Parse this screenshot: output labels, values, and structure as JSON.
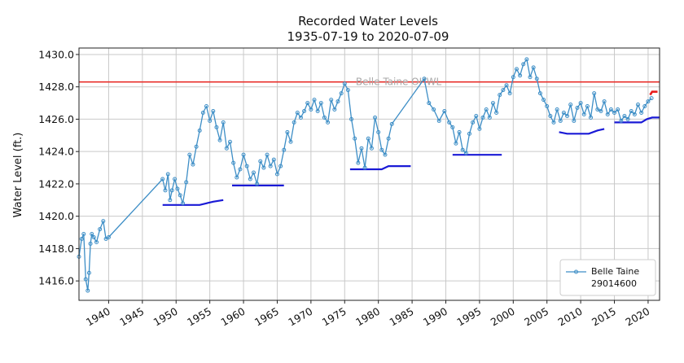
{
  "chart_data": {
    "type": "line",
    "title": "Recorded Water Levels",
    "subtitle": "1935-07-19 to 2020-07-09",
    "xlabel": "",
    "ylabel": "Water Level (ft.)",
    "xlim": [
      1935.6,
      2021.7
    ],
    "ylim": [
      1414.8,
      1430.4
    ],
    "x_ticks": [
      1940,
      1945,
      1950,
      1955,
      1960,
      1965,
      1970,
      1975,
      1980,
      1985,
      1990,
      1995,
      2000,
      2005,
      2010,
      2015,
      2020
    ],
    "y_ticks": [
      "1416.0",
      "1418.0",
      "1420.0",
      "1422.0",
      "1424.0",
      "1426.0",
      "1428.0",
      "1430.0"
    ],
    "grid": true,
    "legend_position": "bottom-right",
    "colors": {
      "series": "#3d8ec6",
      "ohwl": "#e8302c",
      "runout": "#1a1ad6",
      "recent": "#e81c1c"
    },
    "series": [
      {
        "name": "Belle Taine\n29014600",
        "x": [
          1935.6,
          1936.0,
          1936.3,
          1936.6,
          1936.9,
          1937.1,
          1937.3,
          1937.5,
          1937.8,
          1938.2,
          1938.7,
          1939.2,
          1939.6,
          1940.0,
          1948.0,
          1948.4,
          1948.8,
          1949.1,
          1949.4,
          1949.8,
          1950.2,
          1950.6,
          1951.0,
          1951.5,
          1952.0,
          1952.5,
          1953.0,
          1953.5,
          1954.0,
          1954.5,
          1955.0,
          1955.5,
          1956.0,
          1956.5,
          1957.0,
          1957.5,
          1958.0,
          1958.5,
          1959.0,
          1959.5,
          1960.0,
          1960.5,
          1961.0,
          1961.5,
          1962.0,
          1962.5,
          1963.0,
          1963.5,
          1964.0,
          1964.5,
          1965.0,
          1965.5,
          1966.0,
          1966.5,
          1967.0,
          1967.5,
          1968.0,
          1968.5,
          1969.0,
          1969.5,
          1970.0,
          1970.5,
          1971.0,
          1971.5,
          1972.0,
          1972.5,
          1973.0,
          1973.5,
          1974.0,
          1974.5,
          1975.0,
          1975.5,
          1976.0,
          1976.5,
          1977.0,
          1977.5,
          1978.0,
          1978.5,
          1979.0,
          1979.5,
          1980.0,
          1980.5,
          1981.0,
          1981.5,
          1982.0,
          1986.8,
          1987.5,
          1988.2,
          1989.0,
          1989.8,
          1990.5,
          1991.0,
          1991.5,
          1992.0,
          1992.5,
          1993.0,
          1993.5,
          1994.0,
          1994.5,
          1995.0,
          1995.5,
          1996.0,
          1996.5,
          1997.0,
          1997.5,
          1998.0,
          1998.5,
          1999.0,
          1999.5,
          2000.0,
          2000.5,
          2001.0,
          2001.5,
          2002.0,
          2002.5,
          2003.0,
          2003.5,
          2004.0,
          2004.5,
          2005.0,
          2005.5,
          2006.0,
          2006.5,
          2007.0,
          2007.5,
          2008.0,
          2008.5,
          2009.0,
          2009.5,
          2010.0,
          2010.5,
          2011.0,
          2011.5,
          2012.0,
          2012.5,
          2013.0,
          2013.5,
          2014.0,
          2014.5,
          2015.0,
          2015.5,
          2016.0,
          2016.5,
          2017.0,
          2017.5,
          2018.0,
          2018.5,
          2019.0,
          2019.5,
          2020.0,
          2020.5
        ],
        "values": [
          1417.5,
          1418.6,
          1418.9,
          1416.1,
          1415.4,
          1416.5,
          1418.3,
          1418.9,
          1418.7,
          1418.4,
          1419.2,
          1419.7,
          1418.6,
          1418.7,
          1422.3,
          1421.6,
          1422.6,
          1421.0,
          1421.6,
          1422.3,
          1421.7,
          1421.3,
          1420.8,
          1422.1,
          1423.8,
          1423.2,
          1424.3,
          1425.3,
          1426.4,
          1426.8,
          1425.9,
          1426.5,
          1425.5,
          1424.7,
          1425.8,
          1424.2,
          1424.6,
          1423.3,
          1422.4,
          1422.9,
          1423.8,
          1423.1,
          1422.3,
          1422.7,
          1422.0,
          1423.4,
          1423.0,
          1423.8,
          1423.1,
          1423.5,
          1422.6,
          1423.1,
          1424.1,
          1425.2,
          1424.6,
          1425.8,
          1426.4,
          1426.1,
          1426.5,
          1427.0,
          1426.6,
          1427.2,
          1426.5,
          1427.0,
          1426.1,
          1425.8,
          1427.2,
          1426.6,
          1427.1,
          1427.6,
          1428.2,
          1427.8,
          1426.0,
          1424.8,
          1423.3,
          1424.2,
          1423.0,
          1424.8,
          1424.2,
          1426.1,
          1425.2,
          1424.1,
          1423.8,
          1424.8,
          1425.7,
          1428.5,
          1427.0,
          1426.6,
          1425.9,
          1426.5,
          1425.8,
          1425.5,
          1424.5,
          1425.2,
          1424.1,
          1423.9,
          1425.1,
          1425.8,
          1426.2,
          1425.4,
          1426.1,
          1426.6,
          1426.1,
          1427.0,
          1426.4,
          1427.5,
          1427.8,
          1428.1,
          1427.6,
          1428.6,
          1429.1,
          1428.7,
          1429.4,
          1429.7,
          1428.6,
          1429.2,
          1428.5,
          1427.6,
          1427.2,
          1426.8,
          1426.2,
          1425.8,
          1426.6,
          1425.9,
          1426.4,
          1426.2,
          1426.9,
          1425.9,
          1426.7,
          1427.0,
          1426.3,
          1426.8,
          1426.1,
          1427.6,
          1426.6,
          1426.5,
          1427.1,
          1426.3,
          1426.6,
          1426.4,
          1426.6,
          1425.9,
          1426.2,
          1426.0,
          1426.5,
          1426.3,
          1426.9,
          1426.4,
          1426.8,
          1427.1,
          1427.3
        ]
      }
    ],
    "reference_line": {
      "label": "Belle Taine OHWL",
      "y": 1428.3
    },
    "runout_segments": [
      {
        "x": [
          1948.0,
          1953.5,
          1954.5,
          1955.5,
          1957.0
        ],
        "y": [
          1420.7,
          1420.7,
          1420.8,
          1420.9,
          1421.0
        ]
      },
      {
        "x": [
          1958.3,
          1966.0
        ],
        "y": [
          1421.9,
          1421.9
        ]
      },
      {
        "x": [
          1975.8,
          1980.5,
          1981.5,
          1983.0,
          1984.8
        ],
        "y": [
          1422.9,
          1422.9,
          1423.1,
          1423.1,
          1423.1
        ]
      },
      {
        "x": [
          1991.0,
          1998.3
        ],
        "y": [
          1423.8,
          1423.8
        ]
      },
      {
        "x": [
          2006.8,
          2008.0,
          2011.2,
          2012.5,
          2013.5
        ],
        "y": [
          1425.2,
          1425.1,
          1425.1,
          1425.3,
          1425.4
        ]
      },
      {
        "x": [
          2015.0,
          2019.0,
          2019.8,
          2020.6,
          2021.7
        ],
        "y": [
          1425.8,
          1425.8,
          1426.0,
          1426.1,
          1426.1
        ]
      }
    ],
    "recent_segment": {
      "x": [
        2020.3,
        2020.6,
        2020.9,
        2021.4
      ],
      "y": [
        1427.5,
        1427.7,
        1427.7,
        1427.7
      ]
    }
  }
}
